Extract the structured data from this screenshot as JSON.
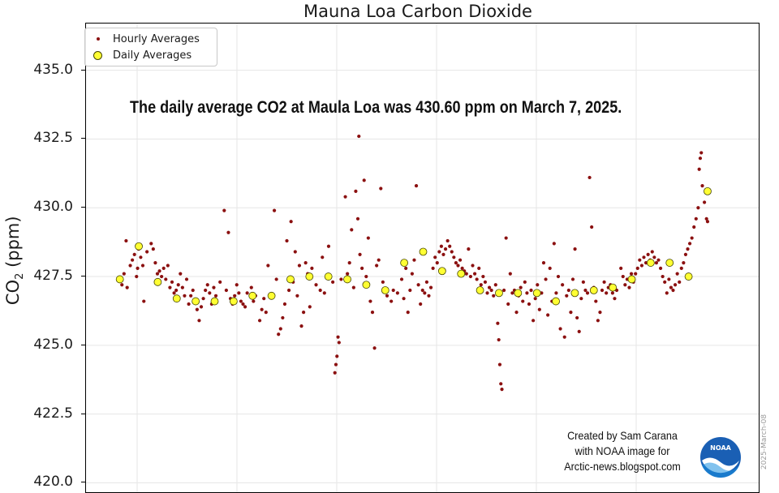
{
  "chart_data": {
    "type": "scatter",
    "title": "Mauna Loa Carbon Dioxide",
    "xlabel": "",
    "ylabel": "CO",
    "ylabel_subscript": "2",
    "ylabel_unit": " (ppm)",
    "ylim": [
      419.6,
      436.7
    ],
    "xlim": [
      0,
      33
    ],
    "yticks": [
      420.0,
      422.5,
      425.0,
      427.5,
      430.0,
      432.5,
      435.0
    ],
    "ytick_labels": [
      "420.0",
      "422.5",
      "425.0",
      "427.5",
      "430.0",
      "432.5",
      "435.0"
    ],
    "grid": true,
    "legend_position": "top-left",
    "colors": {
      "hourly": "#8b1010",
      "daily_fill": "#ffff33",
      "daily_edge": "#444400",
      "grid": "#e6e6e6"
    },
    "series": [
      {
        "name": "Hourly Averages",
        "marker": "small-dot",
        "points": [
          [
            0.1,
            427.2
          ],
          [
            0.2,
            427.6
          ],
          [
            0.3,
            428.8
          ],
          [
            0.35,
            427.1
          ],
          [
            0.5,
            427.9
          ],
          [
            0.6,
            428.1
          ],
          [
            0.7,
            428.3
          ],
          [
            0.8,
            427.5
          ],
          [
            0.85,
            427.8
          ],
          [
            0.9,
            428.5
          ],
          [
            1.0,
            428.2
          ],
          [
            1.1,
            427.9
          ],
          [
            1.15,
            426.6
          ],
          [
            1.3,
            428.4
          ],
          [
            1.5,
            428.7
          ],
          [
            1.6,
            428.5
          ],
          [
            1.7,
            428.0
          ],
          [
            1.8,
            427.6
          ],
          [
            1.9,
            427.7
          ],
          [
            2.0,
            427.5
          ],
          [
            2.1,
            427.8
          ],
          [
            2.2,
            427.4
          ],
          [
            2.3,
            427.9
          ],
          [
            2.4,
            427.1
          ],
          [
            2.5,
            427.3
          ],
          [
            2.6,
            426.9
          ],
          [
            2.7,
            427.0
          ],
          [
            2.8,
            427.2
          ],
          [
            2.9,
            427.6
          ],
          [
            3.0,
            427.1
          ],
          [
            3.1,
            426.8
          ],
          [
            3.2,
            427.4
          ],
          [
            3.3,
            426.5
          ],
          [
            3.4,
            426.8
          ],
          [
            3.5,
            427.0
          ],
          [
            3.6,
            426.6
          ],
          [
            3.7,
            426.3
          ],
          [
            3.8,
            425.9
          ],
          [
            3.9,
            426.4
          ],
          [
            4.0,
            426.7
          ],
          [
            4.1,
            427.0
          ],
          [
            4.2,
            427.2
          ],
          [
            4.3,
            426.9
          ],
          [
            4.4,
            426.5
          ],
          [
            4.5,
            427.1
          ],
          [
            4.6,
            426.8
          ],
          [
            4.8,
            427.3
          ],
          [
            5.0,
            429.9
          ],
          [
            5.1,
            427.0
          ],
          [
            5.2,
            429.1
          ],
          [
            5.3,
            426.7
          ],
          [
            5.4,
            426.5
          ],
          [
            5.5,
            426.8
          ],
          [
            5.6,
            427.2
          ],
          [
            5.7,
            426.9
          ],
          [
            5.8,
            426.6
          ],
          [
            5.9,
            426.5
          ],
          [
            6.0,
            426.4
          ],
          [
            6.1,
            426.9
          ],
          [
            6.3,
            427.1
          ],
          [
            6.4,
            426.6
          ],
          [
            6.5,
            426.8
          ],
          [
            6.7,
            425.9
          ],
          [
            6.8,
            426.3
          ],
          [
            6.9,
            426.7
          ],
          [
            7.0,
            426.2
          ],
          [
            7.1,
            427.9
          ],
          [
            7.2,
            426.8
          ],
          [
            7.4,
            429.9
          ],
          [
            7.5,
            427.4
          ],
          [
            7.6,
            425.4
          ],
          [
            7.7,
            425.6
          ],
          [
            7.8,
            426.0
          ],
          [
            7.9,
            426.5
          ],
          [
            8.0,
            428.8
          ],
          [
            8.1,
            427.0
          ],
          [
            8.2,
            429.5
          ],
          [
            8.3,
            427.3
          ],
          [
            8.4,
            428.4
          ],
          [
            8.5,
            426.8
          ],
          [
            8.6,
            427.9
          ],
          [
            8.7,
            425.7
          ],
          [
            8.8,
            426.2
          ],
          [
            8.9,
            428.0
          ],
          [
            9.0,
            427.6
          ],
          [
            9.1,
            426.4
          ],
          [
            9.2,
            427.8
          ],
          [
            9.4,
            427.2
          ],
          [
            9.6,
            427.0
          ],
          [
            9.7,
            428.2
          ],
          [
            9.8,
            426.9
          ],
          [
            9.9,
            427.5
          ],
          [
            10.0,
            428.6
          ],
          [
            10.2,
            427.3
          ],
          [
            10.3,
            424.0
          ],
          [
            10.35,
            424.3
          ],
          [
            10.4,
            424.6
          ],
          [
            10.45,
            425.3
          ],
          [
            10.5,
            425.1
          ],
          [
            10.6,
            427.4
          ],
          [
            10.8,
            430.4
          ],
          [
            10.9,
            427.6
          ],
          [
            11.0,
            428.0
          ],
          [
            11.1,
            429.2
          ],
          [
            11.2,
            427.1
          ],
          [
            11.3,
            430.6
          ],
          [
            11.4,
            429.6
          ],
          [
            11.45,
            432.6
          ],
          [
            11.5,
            428.3
          ],
          [
            11.6,
            427.8
          ],
          [
            11.7,
            431.0
          ],
          [
            11.8,
            427.5
          ],
          [
            11.9,
            428.9
          ],
          [
            12.0,
            426.6
          ],
          [
            12.1,
            426.2
          ],
          [
            12.2,
            424.9
          ],
          [
            12.3,
            427.9
          ],
          [
            12.4,
            428.1
          ],
          [
            12.5,
            430.7
          ],
          [
            12.6,
            427.3
          ],
          [
            12.8,
            426.8
          ],
          [
            13.0,
            426.6
          ],
          [
            13.1,
            427.0
          ],
          [
            13.3,
            426.9
          ],
          [
            13.5,
            427.4
          ],
          [
            13.6,
            426.7
          ],
          [
            13.7,
            427.8
          ],
          [
            13.8,
            426.2
          ],
          [
            13.9,
            427.0
          ],
          [
            14.0,
            427.6
          ],
          [
            14.1,
            428.1
          ],
          [
            14.2,
            430.8
          ],
          [
            14.3,
            427.2
          ],
          [
            14.4,
            426.5
          ],
          [
            14.5,
            427.0
          ],
          [
            14.6,
            426.9
          ],
          [
            14.7,
            427.3
          ],
          [
            14.8,
            426.8
          ],
          [
            14.9,
            427.1
          ],
          [
            15.0,
            427.8
          ],
          [
            15.1,
            428.2
          ],
          [
            15.2,
            428.0
          ],
          [
            15.3,
            428.4
          ],
          [
            15.4,
            428.6
          ],
          [
            15.5,
            428.3
          ],
          [
            15.6,
            428.5
          ],
          [
            15.7,
            428.8
          ],
          [
            15.8,
            428.6
          ],
          [
            15.9,
            428.4
          ],
          [
            16.0,
            428.2
          ],
          [
            16.1,
            428.0
          ],
          [
            16.2,
            427.9
          ],
          [
            16.3,
            428.1
          ],
          [
            16.4,
            427.8
          ],
          [
            16.5,
            427.7
          ],
          [
            16.6,
            427.6
          ],
          [
            16.7,
            428.5
          ],
          [
            16.8,
            427.5
          ],
          [
            16.9,
            427.9
          ],
          [
            17.0,
            427.6
          ],
          [
            17.1,
            427.4
          ],
          [
            17.2,
            427.8
          ],
          [
            17.3,
            427.2
          ],
          [
            17.4,
            427.5
          ],
          [
            17.5,
            427.3
          ],
          [
            17.6,
            426.9
          ],
          [
            17.7,
            427.1
          ],
          [
            17.8,
            427.0
          ],
          [
            17.9,
            426.8
          ],
          [
            18.0,
            427.2
          ],
          [
            18.1,
            425.8
          ],
          [
            18.15,
            425.2
          ],
          [
            18.2,
            424.3
          ],
          [
            18.25,
            423.6
          ],
          [
            18.3,
            423.4
          ],
          [
            18.4,
            427.0
          ],
          [
            18.5,
            428.9
          ],
          [
            18.6,
            426.5
          ],
          [
            18.7,
            427.6
          ],
          [
            18.8,
            426.9
          ],
          [
            18.9,
            427.0
          ],
          [
            19.0,
            426.2
          ],
          [
            19.1,
            426.8
          ],
          [
            19.2,
            427.1
          ],
          [
            19.3,
            426.6
          ],
          [
            19.4,
            427.3
          ],
          [
            19.5,
            426.9
          ],
          [
            19.6,
            426.5
          ],
          [
            19.7,
            427.0
          ],
          [
            19.8,
            425.9
          ],
          [
            19.9,
            426.7
          ],
          [
            20.0,
            427.2
          ],
          [
            20.1,
            426.3
          ],
          [
            20.2,
            426.9
          ],
          [
            20.3,
            428.0
          ],
          [
            20.4,
            427.4
          ],
          [
            20.5,
            426.1
          ],
          [
            20.6,
            427.8
          ],
          [
            20.7,
            426.6
          ],
          [
            20.8,
            428.7
          ],
          [
            20.9,
            426.9
          ],
          [
            21.0,
            427.5
          ],
          [
            21.1,
            425.6
          ],
          [
            21.2,
            427.2
          ],
          [
            21.3,
            425.3
          ],
          [
            21.4,
            426.8
          ],
          [
            21.5,
            427.0
          ],
          [
            21.6,
            426.2
          ],
          [
            21.7,
            427.4
          ],
          [
            21.8,
            428.5
          ],
          [
            21.9,
            426.0
          ],
          [
            22.0,
            425.5
          ],
          [
            22.1,
            426.7
          ],
          [
            22.2,
            427.3
          ],
          [
            22.3,
            427.0
          ],
          [
            22.4,
            426.9
          ],
          [
            22.5,
            431.1
          ],
          [
            22.6,
            429.3
          ],
          [
            22.7,
            427.1
          ],
          [
            22.8,
            426.6
          ],
          [
            22.9,
            425.9
          ],
          [
            23.0,
            426.2
          ],
          [
            23.1,
            427.0
          ],
          [
            23.2,
            427.3
          ],
          [
            23.3,
            426.9
          ],
          [
            23.4,
            427.1
          ],
          [
            23.5,
            427.2
          ],
          [
            23.6,
            426.9
          ],
          [
            23.7,
            426.7
          ],
          [
            23.8,
            427.0
          ],
          [
            24.0,
            427.8
          ],
          [
            24.1,
            427.5
          ],
          [
            24.2,
            427.2
          ],
          [
            24.3,
            427.4
          ],
          [
            24.4,
            427.1
          ],
          [
            24.5,
            427.6
          ],
          [
            24.6,
            427.3
          ],
          [
            24.7,
            427.6
          ],
          [
            24.8,
            427.8
          ],
          [
            24.9,
            428.1
          ],
          [
            25.0,
            427.9
          ],
          [
            25.1,
            428.2
          ],
          [
            25.2,
            428.0
          ],
          [
            25.3,
            428.3
          ],
          [
            25.4,
            428.1
          ],
          [
            25.5,
            428.4
          ],
          [
            25.6,
            428.2
          ],
          [
            25.7,
            428.0
          ],
          [
            25.8,
            428.1
          ],
          [
            25.9,
            427.8
          ],
          [
            26.0,
            427.5
          ],
          [
            26.1,
            427.3
          ],
          [
            26.2,
            426.9
          ],
          [
            26.3,
            427.4
          ],
          [
            26.4,
            427.1
          ],
          [
            26.5,
            427.0
          ],
          [
            26.6,
            427.2
          ],
          [
            26.7,
            427.6
          ],
          [
            26.8,
            427.3
          ],
          [
            26.9,
            427.8
          ],
          [
            27.0,
            428.0
          ],
          [
            27.1,
            428.3
          ],
          [
            27.2,
            428.5
          ],
          [
            27.3,
            428.7
          ],
          [
            27.4,
            428.9
          ],
          [
            27.5,
            429.3
          ],
          [
            27.6,
            429.6
          ],
          [
            27.7,
            430.0
          ],
          [
            27.75,
            431.4
          ],
          [
            27.8,
            431.8
          ],
          [
            27.85,
            432.0
          ],
          [
            27.9,
            430.8
          ],
          [
            28.0,
            430.2
          ],
          [
            28.1,
            429.6
          ],
          [
            28.15,
            429.5
          ]
        ]
      },
      {
        "name": "Daily Averages",
        "marker": "large-circle",
        "points": [
          [
            0.5,
            427.4
          ],
          [
            1.5,
            428.6
          ],
          [
            2.5,
            427.3
          ],
          [
            3.5,
            426.7
          ],
          [
            4.5,
            426.6
          ],
          [
            5.5,
            426.6
          ],
          [
            6.5,
            426.6
          ],
          [
            7.5,
            426.8
          ],
          [
            8.5,
            426.8
          ],
          [
            9.5,
            427.4
          ],
          [
            10.5,
            427.5
          ],
          [
            11.5,
            427.5
          ],
          [
            12.5,
            427.4
          ],
          [
            13.5,
            427.2
          ],
          [
            14.5,
            427.0
          ],
          [
            15.5,
            428.0
          ],
          [
            16.5,
            428.4
          ],
          [
            17.5,
            427.7
          ],
          [
            18.5,
            427.6
          ],
          [
            19.5,
            427.0
          ],
          [
            20.5,
            426.9
          ],
          [
            21.5,
            426.9
          ],
          [
            22.5,
            426.9
          ],
          [
            23.5,
            426.6
          ],
          [
            24.5,
            426.9
          ],
          [
            25.5,
            427.0
          ],
          [
            26.5,
            427.1
          ],
          [
            27.5,
            427.4
          ],
          [
            28.5,
            428.0
          ],
          [
            29.5,
            428.0
          ],
          [
            30.5,
            427.5
          ],
          [
            31.5,
            430.6
          ]
        ]
      }
    ],
    "annotation": "The daily average CO2 at Maula Loa was 430.60 ppm on March 7, 2025."
  },
  "credit": {
    "line1": "Created by Sam Carana",
    "line2": "with NOAA image for",
    "line3": "Arctic-news.blogspot.com",
    "logo_text": "NOAA"
  },
  "watermark": "2025-March-08"
}
